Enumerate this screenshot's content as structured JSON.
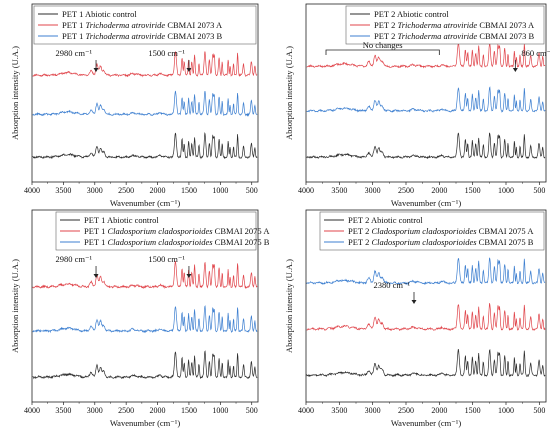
{
  "colors": {
    "control": "#2b2b2b",
    "strain_a": "#e0454b",
    "strain_b": "#3d7fd0"
  },
  "chart_data": [
    {
      "type": "line",
      "panel": "PET 1 – Trichoderma atroviride",
      "xlabel": "Wavenumber (cm⁻¹)",
      "ylabel": "Absorption intensity (U.A.)",
      "xlim": [
        4000,
        400
      ],
      "x_reversed": true,
      "xticks": [
        "4000",
        "3500",
        "3000",
        "2500",
        "2000",
        "1500",
        "1000",
        "500"
      ],
      "grid": false,
      "legend_position": "top-left",
      "legend": [
        {
          "prefix": "PET 1",
          "species": "",
          "suffix": "Abiotic control",
          "color": "#2b2b2b"
        },
        {
          "prefix": "PET 1",
          "species": "Trichoderma atroviride",
          "suffix": "CBMAI 2073 A",
          "color": "#e0454b"
        },
        {
          "prefix": "PET 1",
          "species": "Trichoderma atroviride",
          "suffix": "CBMAI 2073 B",
          "color": "#3d7fd0"
        }
      ],
      "annotations": [
        {
          "text": "2980 cm⁻¹",
          "x": 2980
        },
        {
          "text": "1500 cm⁻¹",
          "x": 1500
        }
      ]
    },
    {
      "type": "line",
      "panel": "PET 2 – Trichoderma atroviride",
      "xlabel": "Wavenumber (cm⁻¹)",
      "ylabel": "Absorption intensity (U.A.)",
      "xlim": [
        4000,
        400
      ],
      "x_reversed": true,
      "xticks": [
        "4000",
        "3500",
        "3000",
        "2500",
        "2000",
        "1500",
        "1000",
        "500"
      ],
      "grid": false,
      "legend_position": "top-right",
      "legend": [
        {
          "prefix": "PET 2",
          "species": "",
          "suffix": "Abiotic control",
          "color": "#2b2b2b"
        },
        {
          "prefix": "PET 2",
          "species": "Trichoderma atroviride",
          "suffix": "CBMAI 2073 A",
          "color": "#e0454b"
        },
        {
          "prefix": "PET 2",
          "species": "Trichoderma atroviride",
          "suffix": "CBMAI 2073 B",
          "color": "#3d7fd0"
        }
      ],
      "annotations": [
        {
          "text": "No changes",
          "x_range": [
            3700,
            2000
          ]
        },
        {
          "text": "860 cm⁻¹",
          "x": 860
        }
      ]
    },
    {
      "type": "line",
      "panel": "PET 1 – Cladosporium cladosporioides",
      "xlabel": "Wavenumber (cm⁻¹)",
      "ylabel": "Absorption intensity (U.A.)",
      "xlim": [
        4000,
        400
      ],
      "x_reversed": true,
      "xticks": [
        "4000",
        "3500",
        "3000",
        "2500",
        "2000",
        "1500",
        "1000",
        "500"
      ],
      "grid": false,
      "legend_position": "top-center",
      "legend": [
        {
          "prefix": "PET 1",
          "species": "",
          "suffix": "Abiotic control",
          "color": "#2b2b2b"
        },
        {
          "prefix": "PET 1",
          "species": "Cladosporium cladosporioides",
          "suffix": "CBMAI 2075 A",
          "color": "#e0454b"
        },
        {
          "prefix": "PET 1",
          "species": "Cladosporium cladosporioides",
          "suffix": "CBMAI 2075 B",
          "color": "#3d7fd0"
        }
      ],
      "annotations": [
        {
          "text": "2980 cm⁻¹",
          "x": 2980
        },
        {
          "text": "1500 cm⁻¹",
          "x": 1500
        }
      ]
    },
    {
      "type": "line",
      "panel": "PET 2 – Cladosporium cladosporioides",
      "xlabel": "Wavenumber (cm⁻¹)",
      "ylabel": "Absorption intensity (U.A.)",
      "xlim": [
        4000,
        400
      ],
      "x_reversed": true,
      "xticks": [
        "4000",
        "3500",
        "3000",
        "2500",
        "2000",
        "1500",
        "1000",
        "500"
      ],
      "grid": false,
      "legend_position": "top-right",
      "legend": [
        {
          "prefix": "PET 2",
          "species": "",
          "suffix": "Abiotic control",
          "color": "#2b2b2b"
        },
        {
          "prefix": "PET 2",
          "species": "Cladosporium cladosporioides",
          "suffix": "CBMAI 2075 A",
          "color": "#e0454b"
        },
        {
          "prefix": "PET 2",
          "species": "Cladosporium cladosporioides",
          "suffix": "CBMAI 2075 B",
          "color": "#3d7fd0"
        }
      ],
      "annotations": [
        {
          "text": "2380 cm⁻¹",
          "x": 2380
        }
      ]
    }
  ]
}
